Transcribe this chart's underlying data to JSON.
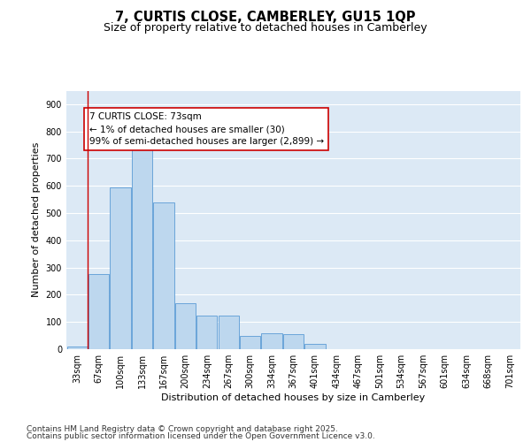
{
  "title1": "7, CURTIS CLOSE, CAMBERLEY, GU15 1QP",
  "title2": "Size of property relative to detached houses in Camberley",
  "xlabel": "Distribution of detached houses by size in Camberley",
  "ylabel": "Number of detached properties",
  "categories": [
    "33sqm",
    "67sqm",
    "100sqm",
    "133sqm",
    "167sqm",
    "200sqm",
    "234sqm",
    "267sqm",
    "300sqm",
    "334sqm",
    "367sqm",
    "401sqm",
    "434sqm",
    "467sqm",
    "501sqm",
    "534sqm",
    "567sqm",
    "601sqm",
    "634sqm",
    "668sqm",
    "701sqm"
  ],
  "values": [
    10,
    275,
    595,
    740,
    540,
    170,
    125,
    125,
    50,
    60,
    55,
    20,
    0,
    0,
    0,
    0,
    0,
    0,
    0,
    0,
    0
  ],
  "bar_color": "#bdd7ee",
  "bar_edge_color": "#5b9bd5",
  "background_color": "#dce9f5",
  "grid_color": "#ffffff",
  "annotation_box_text": "7 CURTIS CLOSE: 73sqm\n← 1% of detached houses are smaller (30)\n99% of semi-detached houses are larger (2,899) →",
  "annotation_box_color": "#ffffff",
  "annotation_box_edge_color": "#cc0000",
  "vline_color": "#cc0000",
  "vline_x": 0.5,
  "ylim": [
    0,
    950
  ],
  "yticks": [
    0,
    100,
    200,
    300,
    400,
    500,
    600,
    700,
    800,
    900
  ],
  "footnote1": "Contains HM Land Registry data © Crown copyright and database right 2025.",
  "footnote2": "Contains public sector information licensed under the Open Government Licence v3.0.",
  "title1_fontsize": 10.5,
  "title2_fontsize": 9,
  "xlabel_fontsize": 8,
  "ylabel_fontsize": 8,
  "tick_fontsize": 7,
  "annotation_fontsize": 7.5,
  "footnote_fontsize": 6.5
}
